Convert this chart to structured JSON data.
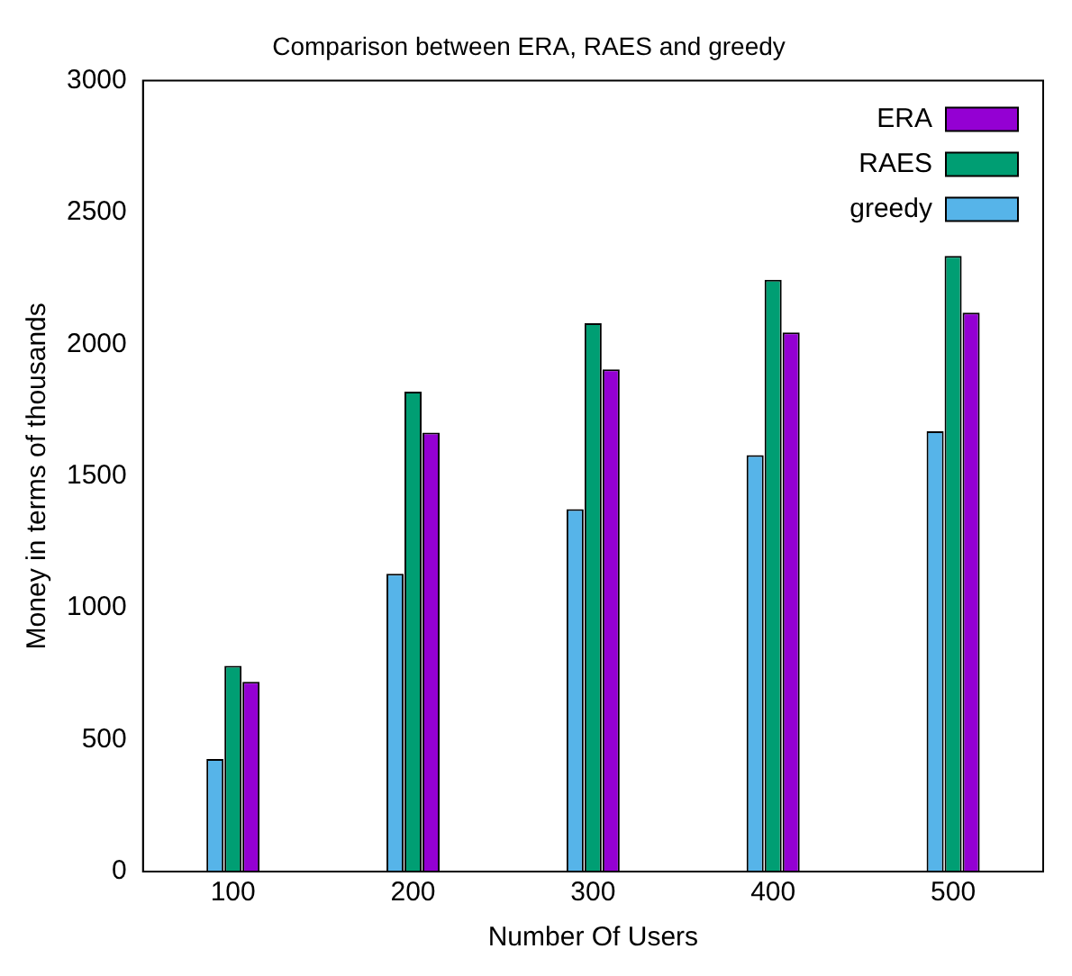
{
  "chart_data": {
    "type": "bar",
    "title": "Comparison between ERA, RAES and greedy",
    "xlabel": "Number Of Users",
    "ylabel": "Money in terms of thousands",
    "categories": [
      "100",
      "200",
      "300",
      "400",
      "500"
    ],
    "series": [
      {
        "name": "greedy",
        "color": "#56b4e9",
        "values": [
          427,
          1130,
          1375,
          1580,
          1670
        ]
      },
      {
        "name": "RAES",
        "color": "#009e73",
        "values": [
          780,
          1820,
          2080,
          2245,
          2335
        ]
      },
      {
        "name": "ERA",
        "color": "#9400d3",
        "values": [
          720,
          1665,
          1905,
          2045,
          2120
        ]
      }
    ],
    "ylim": [
      0,
      3000
    ],
    "yticks": [
      0,
      500,
      1000,
      1500,
      2000,
      2500,
      3000
    ],
    "grid": false,
    "legend": "top right"
  }
}
